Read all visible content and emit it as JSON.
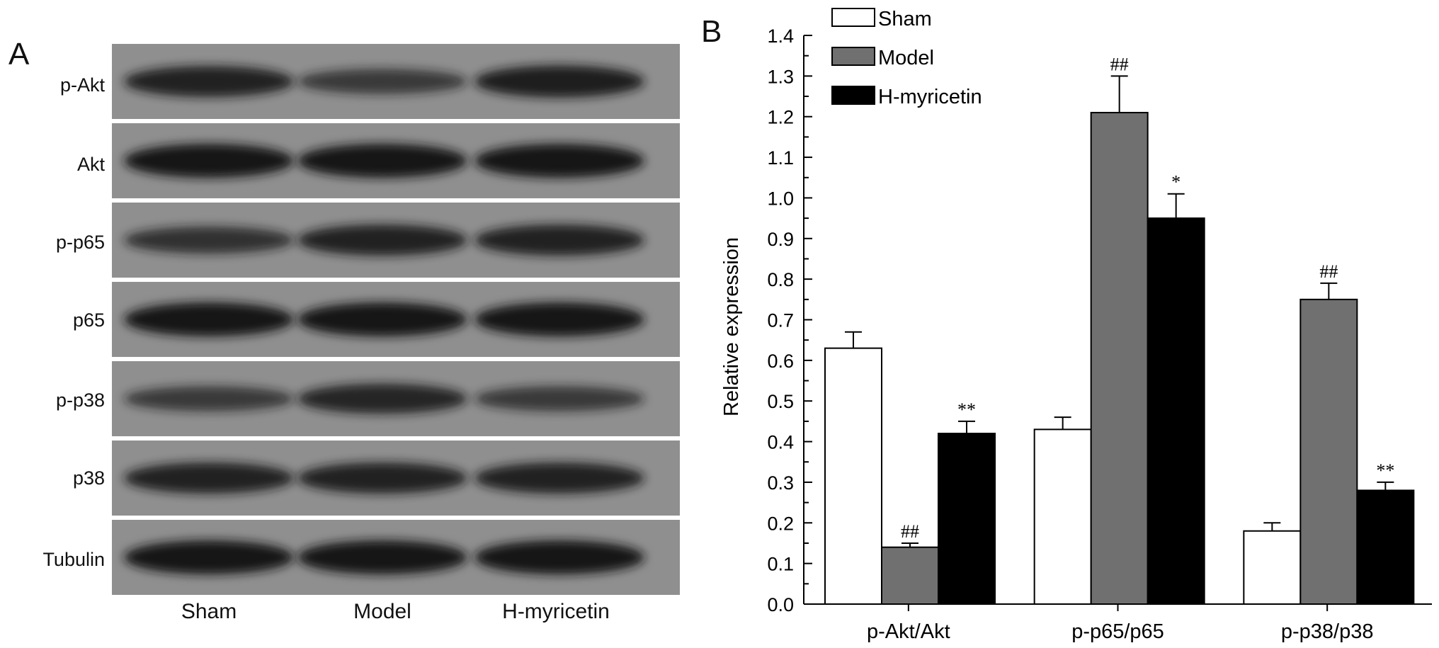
{
  "panel_a": {
    "letter": "A",
    "rows": [
      "p-Akt",
      "Akt",
      "p-p65",
      "p65",
      "p-p38",
      "p38",
      "Tubulin"
    ],
    "lanes": [
      "Sham",
      "Model",
      "H-myricetin"
    ],
    "band_intensity": [
      [
        0.85,
        0.55,
        0.9
      ],
      [
        1.0,
        1.0,
        1.0
      ],
      [
        0.65,
        0.85,
        0.85
      ],
      [
        1.0,
        1.0,
        1.0
      ],
      [
        0.55,
        0.8,
        0.55
      ],
      [
        0.85,
        0.85,
        0.85
      ],
      [
        1.0,
        1.0,
        1.0
      ]
    ],
    "colors": {
      "membrane": "#8f8f8f",
      "band": "#141414",
      "separator": "#ffffff"
    }
  },
  "panel_b": {
    "letter": "B"
  },
  "chart_data": {
    "type": "bar",
    "categories": [
      "p-Akt/Akt",
      "p-p65/p65",
      "p-p38/p38"
    ],
    "series": [
      {
        "name": "Sham",
        "values": [
          0.63,
          0.43,
          0.18
        ],
        "errors": [
          0.04,
          0.03,
          0.02
        ],
        "annotations": [
          "",
          "",
          ""
        ],
        "color": "#ffffff"
      },
      {
        "name": "Model",
        "values": [
          0.14,
          1.21,
          0.75
        ],
        "errors": [
          0.01,
          0.09,
          0.04
        ],
        "annotations": [
          "##",
          "##",
          "##"
        ],
        "color": "#707070"
      },
      {
        "name": "H-myricetin",
        "values": [
          0.42,
          0.95,
          0.28
        ],
        "errors": [
          0.03,
          0.06,
          0.02
        ],
        "annotations": [
          "**",
          "*",
          "**"
        ],
        "color": "#000000"
      }
    ],
    "xlabel": "",
    "ylabel": "Relative expression",
    "ylim": [
      0,
      1.4
    ],
    "yticks": [
      "0.0",
      "0.1",
      "0.2",
      "0.3",
      "0.4",
      "0.5",
      "0.6",
      "0.7",
      "0.8",
      "0.9",
      "1.0",
      "1.1",
      "1.2",
      "1.3",
      "1.4"
    ],
    "grid": false,
    "legend": "top-left"
  }
}
